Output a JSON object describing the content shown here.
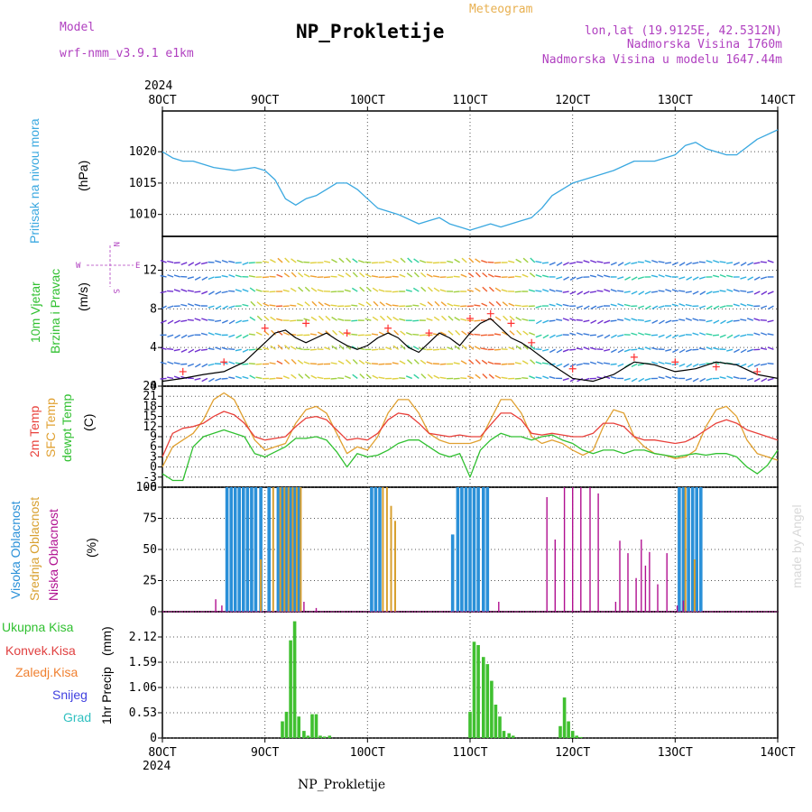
{
  "header": {
    "title": "NP_Prokletije",
    "subtitle": "Meteogram",
    "model_label": "Model",
    "model_name": "wrf-nmm_v3.9.1 e1km",
    "location": "lon,lat (19.9125E, 42.5312N)",
    "elevation": "Nadmorska Visina 1760m",
    "model_elevation": "Nadmorska Visina u modelu 1647.44m",
    "credit": "made by Angel",
    "footer": "NP_Prokletije"
  },
  "colors": {
    "pressure": "#3aa8e0",
    "wind_speed": "#000000",
    "gust_marks": "#ff3030",
    "temp_2m": "#e8403a",
    "temp_sfc": "#e0a030",
    "dewpoint": "#30c030",
    "cloud_high": "#2a90d8",
    "cloud_mid": "#d8a030",
    "cloud_low": "#b01090",
    "precip_total": "#40c030",
    "model_text": "#b040c0",
    "label_green": "#30c030",
    "label_red": "#e04040",
    "label_orange": "#f08030",
    "label_blue": "#4040e0",
    "label_cyan": "#30c0c0"
  },
  "chart_data": [
    {
      "type": "line",
      "panel": "pressure",
      "ylabel_left": "Pritisak na nivou mora",
      "unit": "(hPa)",
      "ylim": [
        1006.5,
        1026.5
      ],
      "yticks": [
        1010,
        1015,
        1020
      ],
      "x_ticks": [
        "8OCT",
        "9OCT",
        "10OCT",
        "11OCT",
        "12OCT",
        "13OCT",
        "14OCT"
      ],
      "x_top_year": "2024",
      "x_bottom_year": "2024",
      "series": [
        {
          "x": [
            8.0,
            8.1,
            8.2,
            8.3,
            8.5,
            8.7,
            8.9,
            9.0,
            9.1,
            9.2,
            9.3,
            9.4,
            9.5,
            9.6,
            9.7,
            9.8,
            9.9,
            10.0,
            10.1,
            10.2,
            10.3,
            10.5,
            10.6,
            10.7,
            10.8,
            11.0,
            11.1,
            11.2,
            11.3,
            11.5,
            11.6,
            11.7,
            11.8,
            12.0,
            12.2,
            12.4,
            12.6,
            12.8,
            13.0,
            13.1,
            13.2,
            13.3,
            13.5,
            13.6,
            13.8,
            14.0
          ],
          "y": [
            1020,
            1019,
            1018.5,
            1018.5,
            1017.5,
            1017,
            1017.5,
            1017,
            1015.5,
            1012.5,
            1011.5,
            1012.5,
            1013,
            1014,
            1015,
            1015,
            1014,
            1012.5,
            1011,
            1010.5,
            1010,
            1008.5,
            1009,
            1009.5,
            1008.5,
            1007.5,
            1008,
            1008.5,
            1008,
            1009,
            1009.5,
            1011,
            1013,
            1015,
            1016,
            1017,
            1018.5,
            1018.5,
            1019.5,
            1021,
            1021.5,
            1020.5,
            1019.5,
            1019.5,
            1022,
            1023.5
          ]
        }
      ]
    },
    {
      "type": "line",
      "panel": "wind",
      "ylabel_left": "10m Vjetar Brzina i Pravac",
      "unit": "(m/s)",
      "ylim": [
        0,
        15.5
      ],
      "yticks": [
        0,
        4,
        8,
        12
      ],
      "compass": {
        "n": "N",
        "s": "S",
        "e": "E",
        "w": "W"
      },
      "series": [
        {
          "name": "speed",
          "x": [
            8.0,
            8.2,
            8.4,
            8.6,
            8.8,
            9.0,
            9.1,
            9.2,
            9.3,
            9.4,
            9.5,
            9.6,
            9.7,
            9.8,
            9.9,
            10.0,
            10.1,
            10.2,
            10.3,
            10.4,
            10.5,
            10.6,
            10.7,
            10.8,
            10.9,
            11.0,
            11.1,
            11.2,
            11.3,
            11.4,
            11.5,
            11.6,
            11.7,
            11.8,
            12.0,
            12.2,
            12.4,
            12.6,
            12.8,
            13.0,
            13.2,
            13.4,
            13.6,
            13.8,
            14.0
          ],
          "y": [
            0.5,
            0.8,
            1.2,
            1.5,
            2.5,
            4.5,
            5.5,
            5.8,
            5,
            4.5,
            5,
            5.5,
            4.8,
            4.2,
            3.8,
            4.2,
            5,
            5.5,
            5,
            4,
            3.5,
            4.5,
            5.5,
            5,
            4.2,
            5.5,
            6.5,
            7,
            6,
            5,
            4.5,
            3.8,
            3,
            2.2,
            0.8,
            0.5,
            1.2,
            2.5,
            2.2,
            1.5,
            1.8,
            2.5,
            2.2,
            1.2,
            0.8
          ]
        },
        {
          "name": "gust",
          "x": [
            8.2,
            8.6,
            9.0,
            9.4,
            9.8,
            10.2,
            10.6,
            11.0,
            11.2,
            11.4,
            11.6,
            12.0,
            12.6,
            13.0,
            13.4,
            13.8
          ],
          "y": [
            1.5,
            2.5,
            6,
            6.5,
            5.5,
            6,
            5.5,
            7,
            7.5,
            6.5,
            4.5,
            1.8,
            3,
            2.5,
            2,
            1.5
          ]
        }
      ]
    },
    {
      "type": "line",
      "panel": "temperature",
      "ylabels": [
        "2m Temp",
        "SFC Temp",
        "dewpt Temp"
      ],
      "unit": "(C)",
      "ylim": [
        -6,
        24
      ],
      "yticks": [
        -6,
        -3,
        0,
        3,
        6,
        9,
        12,
        15,
        18,
        21,
        24
      ],
      "series": [
        {
          "name": "2m Temp",
          "x": [
            8.0,
            8.1,
            8.2,
            8.3,
            8.4,
            8.5,
            8.6,
            8.7,
            8.8,
            8.9,
            9.0,
            9.1,
            9.2,
            9.3,
            9.4,
            9.5,
            9.6,
            9.7,
            9.8,
            9.9,
            10.0,
            10.1,
            10.2,
            10.3,
            10.4,
            10.5,
            10.6,
            10.7,
            10.8,
            10.9,
            11.0,
            11.1,
            11.2,
            11.3,
            11.4,
            11.5,
            11.6,
            11.7,
            11.8,
            11.9,
            12.0,
            12.1,
            12.2,
            12.3,
            12.4,
            12.5,
            12.6,
            12.7,
            12.8,
            12.9,
            13.0,
            13.1,
            13.2,
            13.3,
            13.4,
            13.5,
            13.6,
            13.7,
            13.8,
            13.9,
            14.0
          ],
          "y": [
            3,
            10,
            11.5,
            12,
            13,
            15,
            16.5,
            15.5,
            13,
            9,
            8,
            8.5,
            9,
            12,
            14.5,
            15,
            14,
            11,
            8,
            8.5,
            8,
            10,
            14,
            16,
            15.5,
            13,
            10,
            9.5,
            9,
            9.5,
            9,
            9,
            12.5,
            16,
            16,
            14,
            10,
            9.5,
            10,
            9.5,
            9,
            9,
            10,
            13,
            13,
            12,
            9,
            8,
            8,
            7.5,
            7,
            7.5,
            9,
            11,
            13,
            14,
            13,
            11,
            10,
            9,
            8
          ]
        },
        {
          "name": "SFC Temp",
          "x": [
            8.0,
            8.1,
            8.2,
            8.3,
            8.4,
            8.5,
            8.6,
            8.7,
            8.8,
            8.9,
            9.0,
            9.1,
            9.2,
            9.3,
            9.4,
            9.5,
            9.6,
            9.7,
            9.8,
            9.9,
            10.0,
            10.1,
            10.2,
            10.3,
            10.4,
            10.5,
            10.6,
            10.7,
            10.8,
            10.9,
            11.0,
            11.1,
            11.2,
            11.3,
            11.4,
            11.5,
            11.6,
            11.7,
            11.8,
            11.9,
            12.0,
            12.1,
            12.2,
            12.3,
            12.4,
            12.5,
            12.6,
            12.7,
            12.8,
            12.9,
            13.0,
            13.1,
            13.2,
            13.3,
            13.4,
            13.5,
            13.6,
            13.7,
            13.8,
            13.9,
            14.0
          ],
          "y": [
            0,
            6,
            8,
            10,
            14,
            20,
            22,
            20,
            14,
            8,
            5,
            6,
            7,
            13,
            17,
            18,
            16,
            10,
            4,
            6,
            5,
            9,
            16,
            20,
            20,
            16,
            10,
            8,
            7,
            7,
            7,
            8,
            14,
            20,
            20,
            16,
            9,
            7,
            8,
            7,
            5,
            3.5,
            5,
            12,
            17,
            16,
            9,
            6,
            4,
            3.5,
            2.5,
            3,
            5,
            12,
            17,
            18,
            15,
            8,
            4,
            3,
            2
          ]
        },
        {
          "name": "dewpt Temp",
          "x": [
            8.0,
            8.1,
            8.2,
            8.3,
            8.4,
            8.5,
            8.6,
            8.7,
            8.8,
            8.9,
            9.0,
            9.1,
            9.2,
            9.3,
            9.4,
            9.5,
            9.6,
            9.7,
            9.8,
            9.9,
            10.0,
            10.1,
            10.2,
            10.3,
            10.4,
            10.5,
            10.6,
            10.7,
            10.8,
            10.9,
            11.0,
            11.1,
            11.2,
            11.3,
            11.4,
            11.5,
            11.6,
            11.7,
            11.8,
            11.9,
            12.0,
            12.1,
            12.2,
            12.3,
            12.4,
            12.5,
            12.6,
            12.7,
            12.8,
            12.9,
            13.0,
            13.1,
            13.2,
            13.3,
            13.4,
            13.5,
            13.6,
            13.7,
            13.8,
            13.9,
            14.0
          ],
          "y": [
            -2,
            -4,
            -4,
            6,
            9,
            10,
            11,
            10,
            9,
            4,
            3,
            4.5,
            6,
            8.5,
            8.5,
            9,
            8,
            4.5,
            0,
            4,
            3,
            3.5,
            5,
            7,
            8,
            8,
            6,
            4,
            3,
            4,
            -3,
            5,
            8,
            10,
            9,
            9,
            8,
            9,
            9.5,
            8,
            7,
            5,
            4,
            5,
            5,
            4,
            5,
            5,
            4,
            3.5,
            3,
            3.5,
            4,
            3.5,
            4,
            4,
            3,
            0,
            -2,
            0.5,
            5
          ]
        }
      ]
    },
    {
      "type": "bar",
      "panel": "clouds",
      "ylabels": [
        "Visoka Oblacnost",
        "Srednja Oblacnost",
        "Niska Oblacnost"
      ],
      "unit": "(%)",
      "ylim": [
        0,
        100
      ],
      "yticks": [
        0,
        25,
        50,
        75,
        100
      ],
      "series": [
        {
          "name": "Visoka Oblacnost",
          "x": [
            8.63,
            8.67,
            8.71,
            8.75,
            8.79,
            8.83,
            8.87,
            8.91,
            8.96,
            9.04,
            9.13,
            9.17,
            9.21,
            9.25,
            9.29,
            9.33,
            10.04,
            10.08,
            10.12,
            10.83,
            10.88,
            10.92,
            10.96,
            11.0,
            11.04,
            11.08,
            11.13,
            11.17,
            13.04,
            13.08,
            13.13,
            13.17,
            13.21,
            13.25
          ],
          "y": [
            100,
            100,
            100,
            100,
            100,
            100,
            100,
            100,
            100,
            100,
            100,
            100,
            100,
            100,
            100,
            100,
            100,
            100,
            100,
            62,
            100,
            100,
            100,
            100,
            100,
            100,
            100,
            100,
            100,
            100,
            100,
            100,
            100,
            100
          ]
        },
        {
          "name": "Srednja Oblacnost",
          "x": [
            8.96,
            9.08,
            9.15,
            9.19,
            9.23,
            9.27,
            9.31,
            9.35,
            10.15,
            10.19,
            10.23,
            10.27,
            13.1,
            13.19
          ],
          "y": [
            42,
            100,
            100,
            100,
            100,
            100,
            100,
            100,
            100,
            100,
            85,
            73,
            100,
            42
          ]
        },
        {
          "name": "Niska Oblacnost",
          "x": [
            8.52,
            8.58,
            9.38,
            9.5,
            11.28,
            11.75,
            11.83,
            11.92,
            12.0,
            12.08,
            12.17,
            12.25,
            12.42,
            12.46,
            12.54,
            12.62,
            12.67,
            12.71,
            12.75,
            12.83,
            12.92,
            13.02,
            13.08
          ],
          "y": [
            10,
            5,
            8,
            3,
            8,
            92,
            58,
            100,
            100,
            100,
            100,
            95,
            8,
            57,
            47,
            27,
            58,
            37,
            48,
            22,
            47,
            5,
            9
          ]
        }
      ]
    },
    {
      "type": "bar",
      "panel": "precipitation",
      "ylabel_left": "1hr Precip",
      "unit": "(mm)",
      "ylim": [
        0,
        2.65
      ],
      "yticks": [
        0,
        0.53,
        1.06,
        1.59,
        2.12
      ],
      "legend": [
        "Ukupna Kisa",
        "Konvek.Kisa",
        "Zaledj.Kisa",
        "Snijeg",
        "Grad"
      ],
      "series": [
        {
          "name": "Ukupna Kisa",
          "x": [
            9.17,
            9.21,
            9.25,
            9.29,
            9.33,
            9.38,
            9.42,
            9.46,
            9.5,
            9.54,
            9.58,
            9.63,
            11.0,
            11.04,
            11.08,
            11.13,
            11.17,
            11.21,
            11.25,
            11.29,
            11.33,
            11.38,
            11.42,
            11.88,
            11.92,
            11.96,
            12.0,
            12.04,
            12.08
          ],
          "y": [
            0.35,
            0.55,
            2.05,
            2.45,
            0.45,
            0.15,
            0.05,
            0.5,
            0.5,
            0.05,
            0.03,
            0.05,
            0.55,
            2.02,
            1.95,
            1.7,
            1.55,
            1.2,
            0.7,
            0.45,
            0.15,
            0.1,
            0.05,
            0.25,
            0.85,
            0.35,
            0.15,
            0.05,
            0.02
          ]
        }
      ]
    }
  ]
}
